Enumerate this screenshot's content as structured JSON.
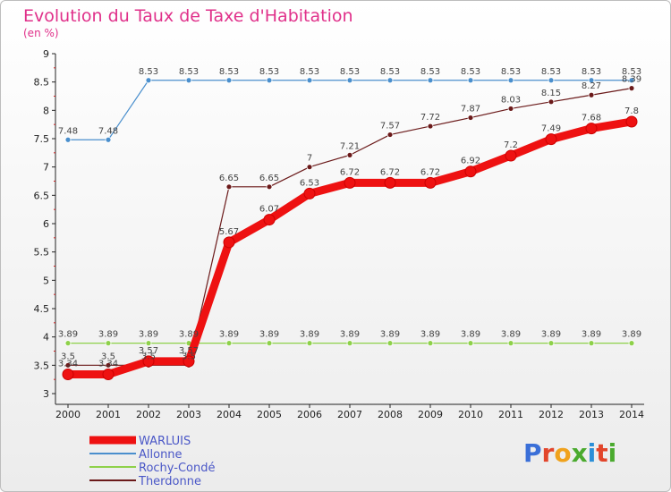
{
  "chart_data": {
    "type": "line",
    "title": "Evolution du Taux de Taxe d'Habitation",
    "subtitle": "(en %)",
    "xlabel": "",
    "ylabel": "",
    "x": [
      "2000",
      "2001",
      "2002",
      "2003",
      "2004",
      "2005",
      "2006",
      "2007",
      "2008",
      "2009",
      "2010",
      "2011",
      "2012",
      "2013",
      "2014"
    ],
    "ylim": [
      3,
      9
    ],
    "yticks": [
      "3",
      "3.5",
      "4",
      "4.5",
      "5",
      "5.5",
      "6",
      "6.5",
      "7",
      "7.5",
      "8",
      "8.5",
      "9"
    ],
    "grid": false,
    "legend_position": "bottom-left",
    "series": [
      {
        "name": "WARLUIS",
        "color": "#ee1111",
        "values": [
          3.34,
          3.34,
          3.57,
          3.57,
          5.67,
          6.07,
          6.53,
          6.72,
          6.72,
          6.72,
          6.92,
          7.2,
          7.49,
          7.68,
          7.8
        ],
        "labels": [
          "3.34",
          "3.34",
          "3.57",
          "3.57",
          "5.67",
          "6.07",
          "6.53",
          "6.72",
          "6.72",
          "6.72",
          "6.92",
          "7.2",
          "7.49",
          "7.68",
          "7.8"
        ]
      },
      {
        "name": "Allonne",
        "color": "#4a8fcd",
        "values": [
          7.48,
          7.48,
          8.53,
          8.53,
          8.53,
          8.53,
          8.53,
          8.53,
          8.53,
          8.53,
          8.53,
          8.53,
          8.53,
          8.53,
          8.53
        ],
        "labels": [
          "7.48",
          "7.48",
          "8.53",
          "8.53",
          "8.53",
          "8.53",
          "8.53",
          "8.53",
          "8.53",
          "8.53",
          "8.53",
          "8.53",
          "8.53",
          "8.53",
          "8.53"
        ]
      },
      {
        "name": "Rochy-Condé",
        "color": "#8ed14a",
        "values": [
          3.89,
          3.89,
          3.89,
          3.89,
          3.89,
          3.89,
          3.89,
          3.89,
          3.89,
          3.89,
          3.89,
          3.89,
          3.89,
          3.89,
          3.89
        ],
        "labels": [
          "3.89",
          "3.89",
          "3.89",
          "3.89",
          "3.89",
          "3.89",
          "3.89",
          "3.89",
          "3.89",
          "3.89",
          "3.89",
          "3.89",
          "3.89",
          "3.89",
          "3.89"
        ]
      },
      {
        "name": "Therdonne",
        "color": "#6b1a1a",
        "values": [
          3.5,
          3.5,
          3.5,
          3.5,
          6.65,
          6.65,
          7.0,
          7.21,
          7.57,
          7.72,
          7.87,
          8.03,
          8.15,
          8.27,
          8.39
        ],
        "labels": [
          "3.5",
          "3.5",
          "3.5",
          "3.5",
          "6.65",
          "6.65",
          "7",
          "7.21",
          "7.57",
          "7.72",
          "7.87",
          "8.03",
          "8.15",
          "8.27",
          "8.39"
        ]
      }
    ]
  },
  "logo": {
    "text": "Proxiti",
    "colors": [
      "#3a6fd8",
      "#e2452b",
      "#f0a21c",
      "#4aaa2e",
      "#2b8fd8",
      "#e2452b",
      "#4aaa2e"
    ]
  }
}
